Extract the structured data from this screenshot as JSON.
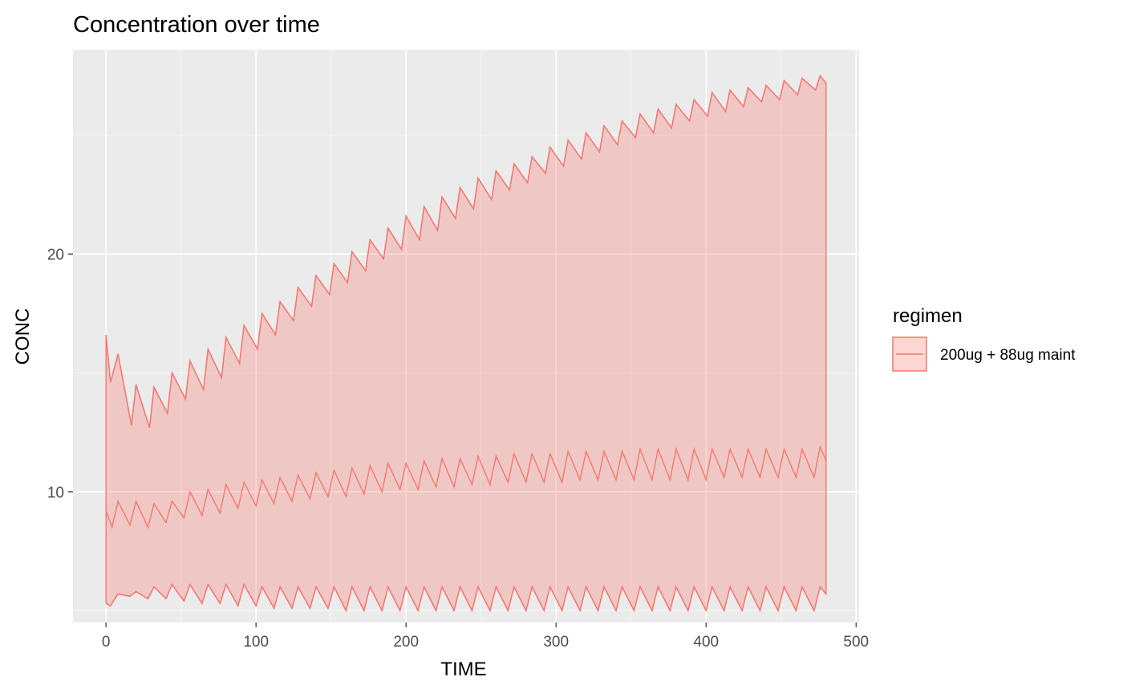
{
  "chart_data": {
    "type": "area",
    "title": "Concentration over time",
    "xlabel": "TIME",
    "ylabel": "CONC",
    "xlim": [
      -22,
      502
    ],
    "ylim": [
      4.5,
      28.6
    ],
    "x_ticks": [
      0,
      100,
      200,
      300,
      400,
      500
    ],
    "y_ticks": [
      10,
      20
    ],
    "grid": true,
    "legend": {
      "title": "regimen",
      "position": "right",
      "entries": [
        "200ug + 88ug maint"
      ]
    },
    "colors": {
      "series": "#F8766D",
      "panel": "#EBEBEB",
      "grid": "#FFFFFF"
    },
    "dosing": {
      "first_dose_time": 0,
      "interval": 12,
      "last_time": 480
    },
    "series": [
      {
        "name": "200ug + 88ug maint",
        "bands": {
          "upper": {
            "description": "sawtooth upper bound",
            "peaks_x": [
              0,
              8,
              20,
              32,
              44,
              56,
              68,
              80,
              92,
              104,
              116,
              128,
              140,
              152,
              164,
              176,
              188,
              200,
              212,
              224,
              236,
              248,
              260,
              272,
              284,
              296,
              308,
              320,
              332,
              344,
              356,
              368,
              380,
              392,
              404,
              416,
              428,
              440,
              452,
              464,
              476
            ],
            "peaks_y": [
              16.6,
              15.8,
              14.5,
              14.4,
              15.0,
              15.5,
              16.0,
              16.5,
              17.0,
              17.5,
              18.0,
              18.6,
              19.1,
              19.6,
              20.1,
              20.6,
              21.1,
              21.6,
              22.0,
              22.4,
              22.8,
              23.2,
              23.5,
              23.8,
              24.1,
              24.5,
              24.8,
              25.1,
              25.4,
              25.6,
              25.9,
              26.1,
              26.3,
              26.5,
              26.8,
              26.9,
              27.0,
              27.1,
              27.3,
              27.4,
              27.5
            ],
            "troughs_x": [
              3,
              17,
              29,
              41,
              53,
              65,
              77,
              89,
              101,
              113,
              125,
              137,
              149,
              161,
              173,
              185,
              197,
              209,
              221,
              233,
              245,
              257,
              269,
              281,
              293,
              305,
              317,
              329,
              341,
              353,
              365,
              377,
              389,
              401,
              413,
              425,
              437,
              449,
              461,
              473
            ],
            "troughs_y": [
              14.6,
              12.8,
              12.7,
              13.3,
              13.9,
              14.3,
              14.8,
              15.4,
              16.0,
              16.6,
              17.2,
              17.8,
              18.3,
              18.8,
              19.3,
              19.8,
              20.2,
              20.6,
              21.0,
              21.5,
              21.9,
              22.3,
              22.7,
              23.0,
              23.4,
              23.7,
              24.0,
              24.3,
              24.6,
              24.9,
              25.1,
              25.3,
              25.6,
              25.8,
              26.0,
              26.2,
              26.4,
              26.5,
              26.7,
              26.9
            ],
            "end_y": 27.2
          },
          "median": {
            "description": "sawtooth median",
            "peaks_x": [
              0,
              8,
              20,
              32,
              44,
              56,
              68,
              80,
              92,
              104,
              116,
              128,
              140,
              152,
              164,
              176,
              188,
              200,
              212,
              224,
              236,
              248,
              260,
              272,
              284,
              296,
              308,
              320,
              332,
              344,
              356,
              368,
              380,
              392,
              404,
              416,
              428,
              440,
              452,
              464,
              476
            ],
            "peaks_y": [
              9.2,
              9.6,
              9.6,
              9.5,
              9.6,
              10.0,
              10.1,
              10.3,
              10.4,
              10.5,
              10.6,
              10.7,
              10.8,
              10.9,
              11.0,
              11.1,
              11.2,
              11.2,
              11.3,
              11.4,
              11.4,
              11.5,
              11.5,
              11.6,
              11.6,
              11.6,
              11.7,
              11.7,
              11.7,
              11.7,
              11.8,
              11.8,
              11.8,
              11.8,
              11.8,
              11.8,
              11.8,
              11.8,
              11.8,
              11.8,
              11.9
            ],
            "troughs_x": [
              4,
              16,
              28,
              40,
              52,
              64,
              76,
              88,
              100,
              112,
              124,
              136,
              148,
              160,
              172,
              184,
              196,
              208,
              220,
              232,
              244,
              256,
              268,
              280,
              292,
              304,
              316,
              328,
              340,
              352,
              364,
              376,
              388,
              400,
              412,
              424,
              436,
              448,
              460,
              472
            ],
            "troughs_y": [
              8.5,
              8.6,
              8.5,
              8.7,
              8.9,
              9.0,
              9.1,
              9.3,
              9.4,
              9.5,
              9.6,
              9.7,
              9.8,
              9.8,
              9.9,
              10.0,
              10.1,
              10.1,
              10.2,
              10.2,
              10.3,
              10.3,
              10.4,
              10.4,
              10.4,
              10.4,
              10.5,
              10.5,
              10.5,
              10.5,
              10.5,
              10.5,
              10.5,
              10.5,
              10.6,
              10.6,
              10.6,
              10.6,
              10.6,
              10.6
            ],
            "end_y": 11.3
          },
          "lower": {
            "description": "sawtooth lower bound",
            "peaks_x": [
              0,
              8,
              20,
              32,
              44,
              56,
              68,
              80,
              92,
              104,
              116,
              128,
              140,
              152,
              164,
              176,
              188,
              200,
              212,
              224,
              236,
              248,
              260,
              272,
              284,
              296,
              308,
              320,
              332,
              344,
              356,
              368,
              380,
              392,
              404,
              416,
              428,
              440,
              452,
              464,
              476
            ],
            "peaks_y": [
              5.3,
              5.7,
              5.8,
              6.0,
              6.1,
              6.1,
              6.1,
              6.1,
              6.1,
              6.0,
              6.0,
              6.0,
              6.0,
              6.0,
              6.0,
              6.0,
              6.0,
              6.0,
              6.0,
              6.0,
              6.0,
              6.0,
              6.0,
              6.0,
              6.0,
              6.0,
              6.0,
              6.0,
              6.0,
              6.0,
              6.0,
              6.0,
              6.0,
              6.0,
              6.0,
              6.0,
              6.0,
              6.0,
              6.0,
              6.0,
              6.0
            ],
            "troughs_x": [
              3,
              16,
              28,
              40,
              52,
              64,
              76,
              88,
              100,
              112,
              124,
              136,
              148,
              160,
              172,
              184,
              196,
              208,
              220,
              232,
              244,
              256,
              268,
              280,
              292,
              304,
              316,
              328,
              340,
              352,
              364,
              376,
              388,
              400,
              412,
              424,
              436,
              448,
              460,
              472
            ],
            "troughs_y": [
              5.2,
              5.6,
              5.5,
              5.5,
              5.4,
              5.3,
              5.3,
              5.2,
              5.2,
              5.1,
              5.1,
              5.1,
              5.1,
              5.0,
              5.0,
              5.0,
              5.0,
              5.0,
              5.0,
              5.0,
              5.0,
              5.0,
              5.0,
              5.0,
              5.0,
              5.0,
              5.0,
              5.0,
              5.0,
              5.0,
              5.0,
              5.0,
              5.0,
              5.0,
              5.0,
              5.0,
              5.0,
              5.0,
              5.0,
              5.0
            ],
            "end_y": 5.7
          }
        }
      }
    ]
  }
}
